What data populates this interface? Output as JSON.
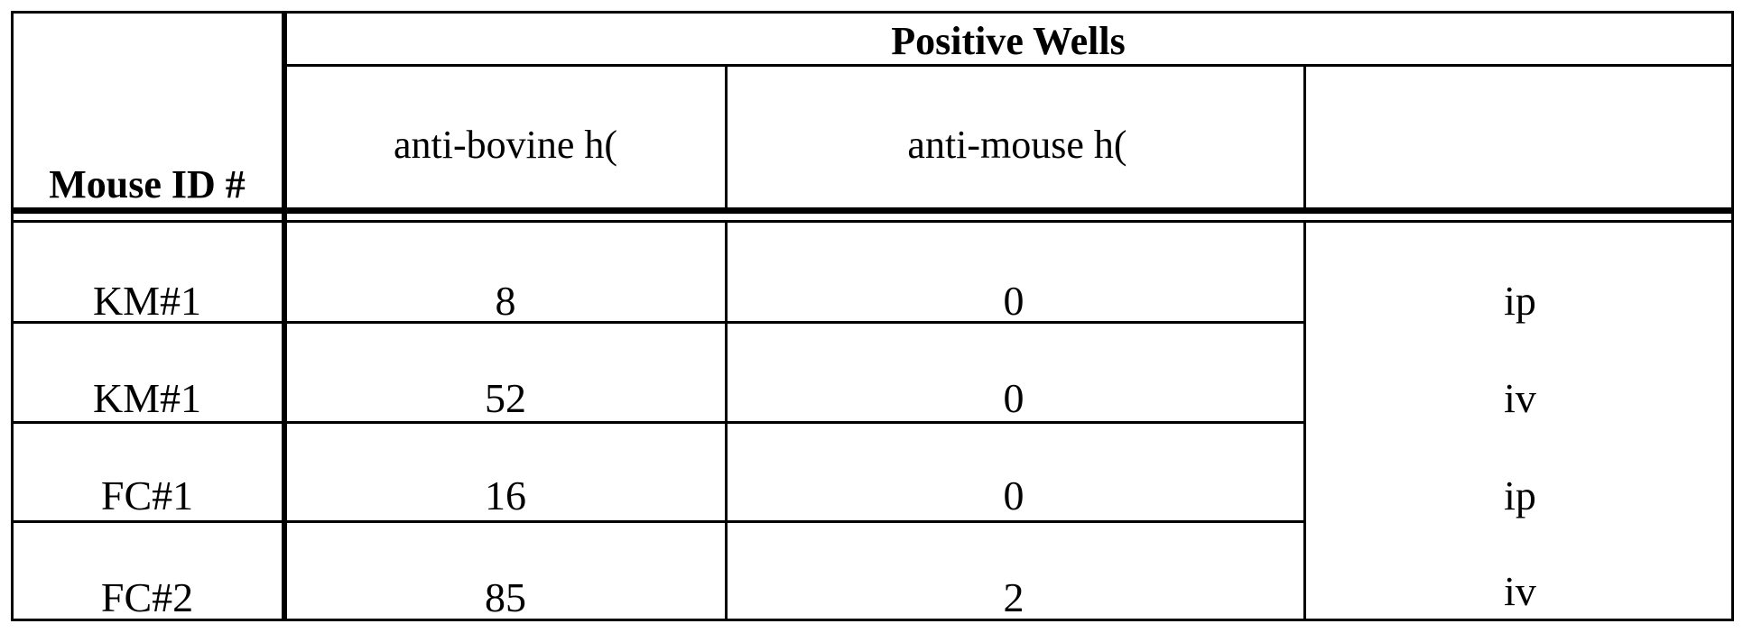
{
  "table": {
    "header": {
      "mouse_id_label": "Mouse ID #",
      "group_label": "Positive Wells",
      "columns": [
        "anti-bovine h(",
        "anti-mouse h(",
        ""
      ]
    },
    "rows": [
      {
        "mouse_id": "KM#1",
        "anti_bovine": "8",
        "anti_mouse": "0",
        "route": "ip"
      },
      {
        "mouse_id": "KM#1",
        "anti_bovine": "52",
        "anti_mouse": "0",
        "route": "iv"
      },
      {
        "mouse_id": "FC#1",
        "anti_bovine": "16",
        "anti_mouse": "0",
        "route": "ip"
      },
      {
        "mouse_id": "FC#2",
        "anti_bovine": "85",
        "anti_mouse": "2",
        "route": "iv"
      }
    ]
  }
}
